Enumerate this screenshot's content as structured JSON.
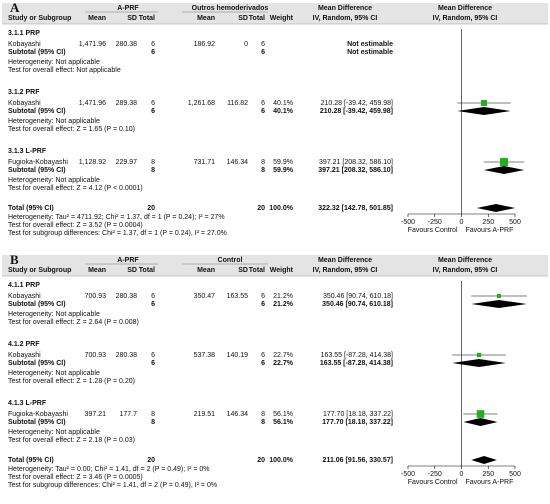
{
  "chart_data": [
    {
      "type": "forest",
      "panel": "A",
      "group_labels": [
        "A-PRF",
        "Outros hemoderivados"
      ],
      "columns": [
        "Study or Subgroup",
        "Mean",
        "SD",
        "Total",
        "Mean",
        "SD",
        "Total",
        "Weight",
        "IV, Random, 95% CI"
      ],
      "effect_header": "Mean Difference",
      "plot_header": [
        "Mean Difference",
        "IV, Random, 95% CI"
      ],
      "subgroups": [
        {
          "title": "3.1.1 PRP",
          "studies": [
            {
              "name": "Kobayashi",
              "cells": [
                "1,471.96",
                "280.38",
                "6",
                "186.92",
                "0",
                "6"
              ],
              "ci_label": "Not estimable"
            }
          ],
          "subtotal": {
            "label": "Subtotal (95% CI)",
            "totals": [
              "6",
              "6"
            ],
            "ci_label": "Not estimable"
          },
          "notes": [
            "Heterogeneity: Not applicable",
            "Test for overall effect: Not applicable"
          ]
        },
        {
          "title": "3.1.2 PRF",
          "studies": [
            {
              "name": "Kobayashi",
              "cells": [
                "1,471.96",
                "289.38",
                "6",
                "1,261.68",
                "116.82",
                "6"
              ],
              "weight": 40.1,
              "weight_label": "40.1%",
              "ci_label": "210.28 [-39.42, 459.98]",
              "md": 210.28,
              "lo": -39.42,
              "hi": 459.98
            }
          ],
          "subtotal": {
            "label": "Subtotal (95% CI)",
            "totals": [
              "6",
              "6"
            ],
            "weight_label": "40.1%",
            "ci_label": "210.28 [-39.42, 459.98]",
            "md": 210.28,
            "lo": -39.42,
            "hi": 459.98
          },
          "notes": [
            "Heterogeneity: Not applicable",
            "Test for overall effect: Z = 1.65 (P = 0.10)"
          ]
        },
        {
          "title": "3.1.3 L-PRF",
          "studies": [
            {
              "name": "Fugioka-Kobayashi",
              "cells": [
                "1,128.92",
                "229.97",
                "8",
                "731.71",
                "146.34",
                "8"
              ],
              "weight": 59.9,
              "weight_label": "59.9%",
              "ci_label": "397.21 [208.32, 586.10]",
              "md": 397.21,
              "lo": 208.32,
              "hi": 586.1
            }
          ],
          "subtotal": {
            "label": "Subtotal (95% CI)",
            "totals": [
              "8",
              "8"
            ],
            "weight_label": "59.9%",
            "ci_label": "397.21 [208.32, 586.10]",
            "md": 397.21,
            "lo": 208.32,
            "hi": 586.1
          },
          "notes": [
            "Heterogeneity: Not applicable",
            "Test for overall effect: Z = 4.12 (P < 0.0001)"
          ]
        }
      ],
      "total": {
        "label": "Total (95% CI)",
        "totals": [
          "20",
          "20"
        ],
        "weight_label": "100.0%",
        "ci_label": "322.32 [142.78, 501.85]",
        "md": 322.32,
        "lo": 142.78,
        "hi": 501.85
      },
      "footer": [
        "Heterogeneity: Tau² = 4711.92; Chi² = 1.37, df = 1 (P = 0.24); I² = 27%",
        "Test for overall effect: Z = 3.52 (P = 0.0004)",
        "Test for subgroup differences: Chi² = 1.37, df = 1 (P = 0.24), I² = 27.0%"
      ],
      "xlim": [
        -500,
        500
      ],
      "xticks": [
        -500,
        -250,
        0,
        250,
        500
      ],
      "favours_labels": [
        "Favours Control",
        "Favours A-PRF"
      ],
      "marker_color": "#22b022",
      "diamond_color": "#000000"
    },
    {
      "type": "forest",
      "panel": "B",
      "group_labels": [
        "A-PRF",
        "Control"
      ],
      "columns": [
        "Study or Subgroup",
        "Mean",
        "SD",
        "Total",
        "Mean",
        "SD",
        "Total",
        "Weight",
        "IV, Random, 95% CI"
      ],
      "effect_header": "Mean Difference",
      "plot_header": [
        "Mean Difference",
        "IV, Random, 95% CI"
      ],
      "subgroups": [
        {
          "title": "4.1.1 PRP",
          "studies": [
            {
              "name": "Kobayashi",
              "cells": [
                "700.93",
                "280.38",
                "6",
                "350.47",
                "163.55",
                "6"
              ],
              "weight": 21.2,
              "weight_label": "21.2%",
              "ci_label": "350.46 [90.74, 610.18]",
              "md": 350.46,
              "lo": 90.74,
              "hi": 610.18
            }
          ],
          "subtotal": {
            "label": "Subtotal (95% CI)",
            "totals": [
              "6",
              "6"
            ],
            "weight_label": "21.2%",
            "ci_label": "350.46 [90.74, 610.18]",
            "md": 350.46,
            "lo": 90.74,
            "hi": 610.18
          },
          "notes": [
            "Heterogeneity: Not applicable",
            "Test for overall effect: Z = 2.64 (P = 0.008)"
          ]
        },
        {
          "title": "4.1.2 PRF",
          "studies": [
            {
              "name": "Kobayashi",
              "cells": [
                "700.93",
                "280.38",
                "6",
                "537.38",
                "140.19",
                "6"
              ],
              "weight": 22.7,
              "weight_label": "22.7%",
              "ci_label": "163.55 [-87.28, 414.38]",
              "md": 163.55,
              "lo": -87.28,
              "hi": 414.38
            }
          ],
          "subtotal": {
            "label": "Subtotal (95% CI)",
            "totals": [
              "6",
              "6"
            ],
            "weight_label": "22.7%",
            "ci_label": "163.55 [-87.28, 414.38]",
            "md": 163.55,
            "lo": -87.28,
            "hi": 414.38
          },
          "notes": [
            "Heterogeneity: Not applicable",
            "Test for overall effect: Z = 1.28 (P = 0.20)"
          ]
        },
        {
          "title": "4.1.3 L-PRF",
          "studies": [
            {
              "name": "Fugioka-Kobayashi",
              "cells": [
                "397.21",
                "177.7",
                "8",
                "219.51",
                "146.34",
                "8"
              ],
              "weight": 56.1,
              "weight_label": "56.1%",
              "ci_label": "177.70 [18.18, 337.22]",
              "md": 177.7,
              "lo": 18.18,
              "hi": 337.22
            }
          ],
          "subtotal": {
            "label": "Subtotal (95% CI)",
            "totals": [
              "8",
              "8"
            ],
            "weight_label": "56.1%",
            "ci_label": "177.70 [18.18, 337.22]",
            "md": 177.7,
            "lo": 18.18,
            "hi": 337.22
          },
          "notes": [
            "Heterogeneity: Not applicable",
            "Test for overall effect: Z = 2.18 (P = 0.03)"
          ]
        }
      ],
      "total": {
        "label": "Total (95% CI)",
        "totals": [
          "20",
          "20"
        ],
        "weight_label": "100.0%",
        "ci_label": "211.06 [91.56, 330.57]",
        "md": 211.06,
        "lo": 91.56,
        "hi": 330.57
      },
      "footer": [
        "Heterogeneity: Tau² = 0.00; Chi² = 1.41, df = 2 (P = 0.49); I² = 0%",
        "Test for overall effect: Z = 3.46 (P = 0.0005)",
        "Test for subgroup differences: Chi² = 1.41, df = 2 (P = 0.49), I² = 0%"
      ],
      "xlim": [
        -500,
        500
      ],
      "xticks": [
        -500,
        -250,
        0,
        250,
        500
      ],
      "favours_labels": [
        "Favours Control",
        "Favours A-PRF"
      ],
      "marker_color": "#22b022",
      "diamond_color": "#000000"
    }
  ]
}
